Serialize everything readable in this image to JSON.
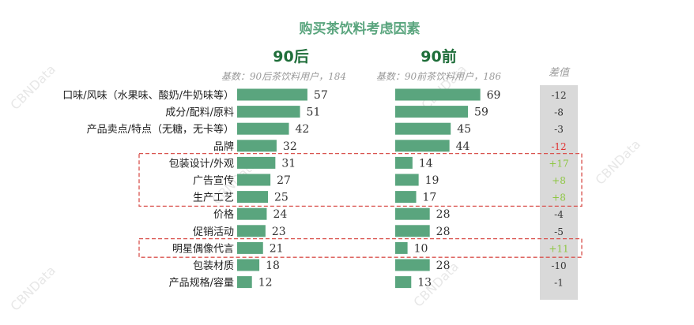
{
  "chart_data": {
    "type": "bar",
    "title": "购买茶饮料考虑因素",
    "categories": [
      "口味/风味（水果味、酸奶/牛奶味等）",
      "成分/配料/原料",
      "产品卖点/特点（无糖，无卡等）",
      "品牌",
      "包装设计/外观",
      "广告宣传",
      "生产工艺",
      "价格",
      "促销活动",
      "明星偶像代言",
      "包装材质",
      "产品规格/容量"
    ],
    "series": [
      {
        "name": "90后",
        "base": "基数：90后茶饮料用户，184",
        "values": [
          57,
          51,
          42,
          32,
          31,
          27,
          25,
          24,
          23,
          21,
          18,
          12
        ]
      },
      {
        "name": "90前",
        "base": "基数：90前茶饮料用户，186",
        "values": [
          69,
          59,
          45,
          44,
          14,
          19,
          17,
          28,
          28,
          10,
          28,
          13
        ]
      }
    ],
    "diff_header": "差值",
    "diff": [
      "-12",
      "-8",
      "-3",
      "-12",
      "+17",
      "+8",
      "+8",
      "-4",
      "-5",
      "+11",
      "-10",
      "-1"
    ],
    "diff_color": [
      "#333333",
      "#333333",
      "#333333",
      "#e03030",
      "#8cc63f",
      "#8cc63f",
      "#8cc63f",
      "#333333",
      "#333333",
      "#8cc63f",
      "#333333",
      "#333333"
    ],
    "highlight_groups": [
      [
        "包装设计/外观",
        "广告宣传",
        "生产工艺"
      ],
      [
        "明星偶像代言"
      ]
    ],
    "bar_color": "#5aa57e",
    "highlight_border_color": "#d9534f",
    "diff_panel_color": "#d9d9d9"
  },
  "watermark": "CBNData"
}
